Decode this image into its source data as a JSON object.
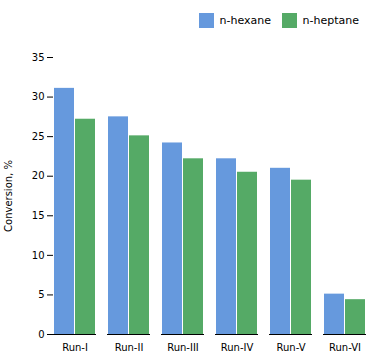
{
  "chart_data": {
    "type": "bar",
    "categories": [
      "Run-I",
      "Run-II",
      "Run-III",
      "Run-IV",
      "Run-V",
      "Run-VI"
    ],
    "series": [
      {
        "name": "n-hexane",
        "color": "#6699dd",
        "values": [
          31.1,
          27.5,
          24.2,
          22.2,
          21.0,
          5.1
        ]
      },
      {
        "name": "n-heptane",
        "color": "#55aa66",
        "values": [
          27.2,
          25.1,
          22.2,
          20.5,
          19.5,
          4.4
        ]
      }
    ],
    "ylabel": "Conversion, %",
    "ylim": [
      0,
      35
    ],
    "yticks": [
      0,
      5,
      10,
      15,
      20,
      25,
      30,
      35
    ],
    "legend": "upper right",
    "grid": false
  }
}
